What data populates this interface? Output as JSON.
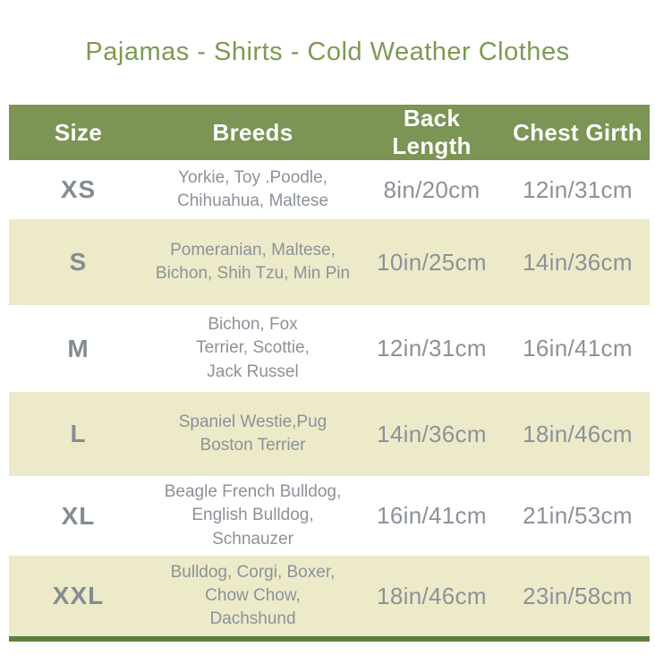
{
  "title": "Pajamas - Shirts - Cold Weather Clothes",
  "table": {
    "headers": [
      "Size",
      "Breeds",
      "Back Length",
      "Chest Girth"
    ],
    "rows": [
      {
        "size": "XS",
        "breeds": "Yorkie, Toy .Poodle,\nChihuahua, Maltese",
        "back_length": "8in/20cm",
        "chest_girth": "12in/31cm"
      },
      {
        "size": "S",
        "breeds": "Pomeranian, Maltese,\nBichon, Shih Tzu, Min Pin",
        "back_length": "10in/25cm",
        "chest_girth": "14in/36cm"
      },
      {
        "size": "M",
        "breeds": "Bichon, Fox\nTerrier, Scottie,\nJack Russel",
        "back_length": "12in/31cm",
        "chest_girth": "16in/41cm"
      },
      {
        "size": "L",
        "breeds": "Spaniel Westie,Pug\nBoston Terrier",
        "back_length": "14in/36cm",
        "chest_girth": "18in/46cm"
      },
      {
        "size": "XL",
        "breeds": "Beagle French Bulldog,\nEnglish Bulldog,\nSchnauzer",
        "back_length": "16in/41cm",
        "chest_girth": "21in/53cm"
      },
      {
        "size": "XXL",
        "breeds": "Bulldog, Corgi, Boxer,\nChow Chow,\nDachshund",
        "back_length": "18in/46cm",
        "chest_girth": "23in/58cm"
      }
    ]
  },
  "colors": {
    "header_green": "#7C9454",
    "title_green": "#7C9B53",
    "row_cream": "#EDEAC9",
    "row_white": "#FFFFFF",
    "text_gray": "#8B9299",
    "size_gray": "#848C93",
    "bottom_bar_green": "#617F3C"
  }
}
